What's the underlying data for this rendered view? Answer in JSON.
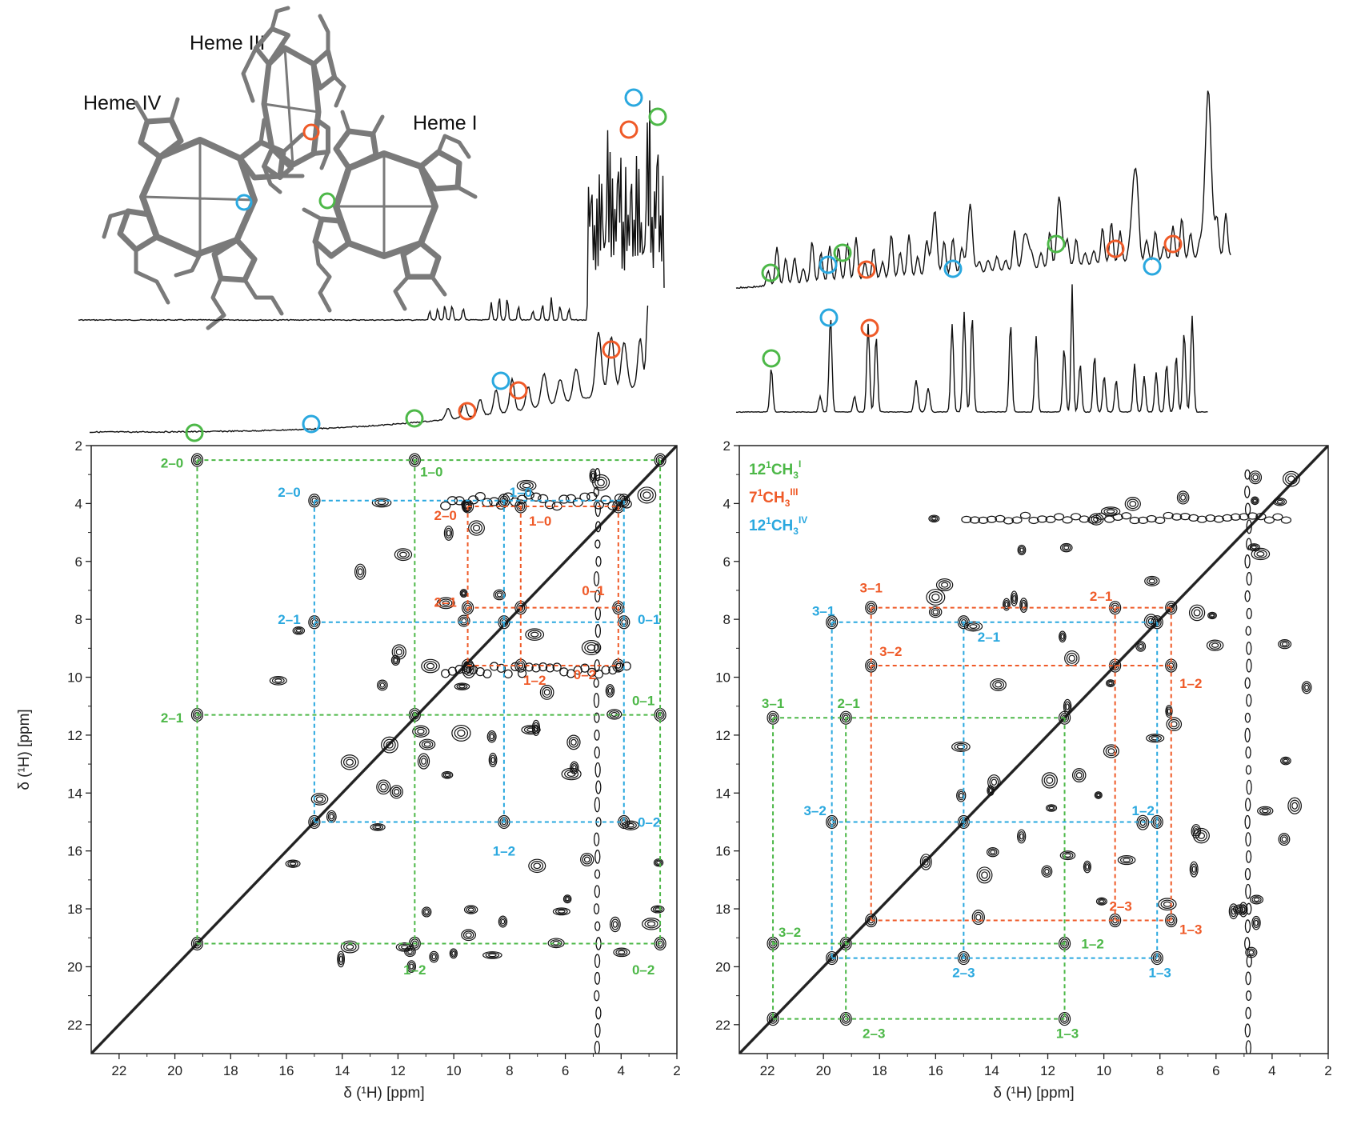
{
  "colors": {
    "green": "#4db848",
    "orange": "#ef5a28",
    "blue": "#2aa8df",
    "black": "#111111"
  },
  "structures": {
    "heme_iv": "Heme IV",
    "heme_iii": "Heme III",
    "heme_i": "Heme I"
  },
  "legend": [
    {
      "prefix": "12",
      "sup": "1",
      "mid": "CH",
      "sub": "3",
      "tag": "I",
      "color": "#4db848"
    },
    {
      "prefix": "7",
      "sup": "1",
      "mid": "CH",
      "sub": "3",
      "tag": "III",
      "color": "#ef5a28"
    },
    {
      "prefix": "12",
      "sup": "1",
      "mid": "CH",
      "sub": "3",
      "tag": "IV",
      "color": "#2aa8df"
    }
  ],
  "chart_data": [
    {
      "type": "heatmap",
      "panel": "left",
      "xlabel": "δ (¹H)  [ppm]",
      "ylabel": "δ (¹H)  [ppm]",
      "xlim": [
        23,
        2
      ],
      "ylim": [
        2,
        23
      ],
      "xticks": [
        "22",
        "20",
        "18",
        "16",
        "14",
        "12",
        "10",
        "8",
        "6",
        "4",
        "2"
      ],
      "yticks": [
        "2",
        "4",
        "6",
        "8",
        "10",
        "12",
        "14",
        "16",
        "18",
        "20",
        "22"
      ],
      "boxes": [
        {
          "color": "green",
          "x": [
            19.2,
            11.4,
            2.6
          ],
          "y": [
            2.5,
            11.3,
            19.2
          ]
        },
        {
          "color": "blue",
          "x": [
            15.0,
            8.2,
            3.9
          ],
          "y": [
            3.9,
            8.1,
            15.0
          ]
        },
        {
          "color": "orange",
          "x": [
            9.5,
            7.6,
            4.1
          ],
          "y": [
            4.1,
            7.6,
            9.6
          ]
        }
      ],
      "labels": [
        {
          "text": "2–0",
          "color": "green",
          "x": 20.1,
          "y": 2.6
        },
        {
          "text": "1–0",
          "color": "green",
          "x": 10.8,
          "y": 2.9
        },
        {
          "text": "2–1",
          "color": "green",
          "x": 20.1,
          "y": 11.4
        },
        {
          "text": "0–1",
          "color": "green",
          "x": 3.2,
          "y": 10.8
        },
        {
          "text": "1–2",
          "color": "green",
          "x": 11.4,
          "y": 20.1
        },
        {
          "text": "0–2",
          "color": "green",
          "x": 3.2,
          "y": 20.1
        },
        {
          "text": "2–0",
          "color": "blue",
          "x": 15.9,
          "y": 3.6
        },
        {
          "text": "1–0",
          "color": "blue",
          "x": 7.6,
          "y": 3.6
        },
        {
          "text": "2–1",
          "color": "blue",
          "x": 15.9,
          "y": 8.0
        },
        {
          "text": "0–1",
          "color": "blue",
          "x": 3.0,
          "y": 8.0
        },
        {
          "text": "1–2",
          "color": "blue",
          "x": 8.2,
          "y": 16.0
        },
        {
          "text": "0–2",
          "color": "blue",
          "x": 3.0,
          "y": 15.0
        },
        {
          "text": "2–0",
          "color": "orange",
          "x": 10.3,
          "y": 4.4
        },
        {
          "text": "1–0",
          "color": "orange",
          "x": 6.9,
          "y": 4.6
        },
        {
          "text": "2–1",
          "color": "orange",
          "x": 10.3,
          "y": 7.4
        },
        {
          "text": "0–1",
          "color": "orange",
          "x": 5.0,
          "y": 7.0
        },
        {
          "text": "1–2",
          "color": "orange",
          "x": 7.1,
          "y": 10.1
        },
        {
          "text": "0–2",
          "color": "orange",
          "x": 5.3,
          "y": 9.9
        }
      ]
    },
    {
      "type": "heatmap",
      "panel": "right",
      "xlabel": "δ (¹H)  [ppm]",
      "ylabel": "",
      "xlim": [
        23,
        2
      ],
      "ylim": [
        2,
        23
      ],
      "xticks": [
        "22",
        "20",
        "18",
        "16",
        "14",
        "12",
        "10",
        "8",
        "6",
        "4",
        "2"
      ],
      "yticks": [
        "2",
        "4",
        "6",
        "8",
        "10",
        "12",
        "14",
        "16",
        "18",
        "20",
        "22"
      ],
      "boxes": [
        {
          "color": "green",
          "x": [
            21.8,
            19.2,
            11.4
          ],
          "y": [
            11.4,
            19.2,
            21.8
          ]
        },
        {
          "color": "blue",
          "x": [
            19.7,
            15.0,
            8.1
          ],
          "y": [
            8.1,
            15.0,
            19.7
          ]
        },
        {
          "color": "orange",
          "x": [
            18.3,
            9.6,
            7.6
          ],
          "y": [
            7.6,
            9.6,
            18.4
          ]
        }
      ],
      "labels": [
        {
          "text": "3–1",
          "color": "green",
          "x": 21.8,
          "y": 10.9
        },
        {
          "text": "2–1",
          "color": "green",
          "x": 19.1,
          "y": 10.9
        },
        {
          "text": "3–2",
          "color": "green",
          "x": 21.2,
          "y": 18.8
        },
        {
          "text": "1–2",
          "color": "green",
          "x": 10.4,
          "y": 19.2
        },
        {
          "text": "2–3",
          "color": "green",
          "x": 18.2,
          "y": 22.3
        },
        {
          "text": "1–3",
          "color": "green",
          "x": 11.3,
          "y": 22.3
        },
        {
          "text": "3–1",
          "color": "blue",
          "x": 20.0,
          "y": 7.7
        },
        {
          "text": "2–1",
          "color": "blue",
          "x": 14.1,
          "y": 8.6
        },
        {
          "text": "3–2",
          "color": "blue",
          "x": 20.3,
          "y": 14.6
        },
        {
          "text": "1–2",
          "color": "blue",
          "x": 8.6,
          "y": 14.6
        },
        {
          "text": "2–3",
          "color": "blue",
          "x": 15.0,
          "y": 20.2
        },
        {
          "text": "1–3",
          "color": "blue",
          "x": 8.0,
          "y": 20.2
        },
        {
          "text": "3–1",
          "color": "orange",
          "x": 18.3,
          "y": 6.9
        },
        {
          "text": "2–1",
          "color": "orange",
          "x": 10.1,
          "y": 7.2
        },
        {
          "text": "3–2",
          "color": "orange",
          "x": 17.6,
          "y": 9.1
        },
        {
          "text": "1–2",
          "color": "orange",
          "x": 6.9,
          "y": 10.2
        },
        {
          "text": "2–3",
          "color": "orange",
          "x": 9.4,
          "y": 17.9
        },
        {
          "text": "1–3",
          "color": "orange",
          "x": 6.9,
          "y": 18.7
        }
      ]
    }
  ]
}
